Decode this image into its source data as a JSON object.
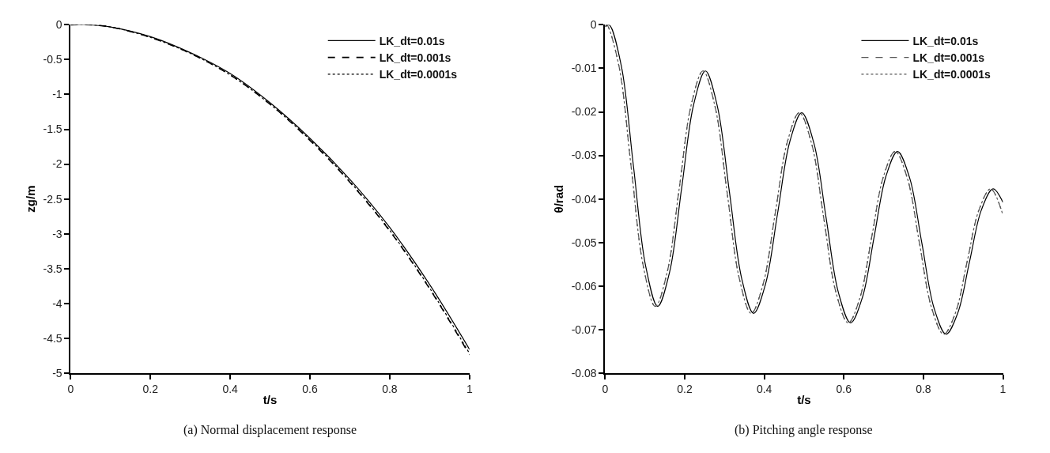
{
  "chart_data": [
    {
      "type": "line",
      "xlabel": "t/s",
      "ylabel": "zg/m",
      "xlim": [
        0,
        1
      ],
      "ylim": [
        -5,
        0
      ],
      "xticks": [
        0,
        0.2,
        0.4,
        0.6,
        0.8,
        1
      ],
      "yticks": [
        0,
        -0.5,
        -1,
        -1.5,
        -2,
        -2.5,
        -3,
        -3.5,
        -4,
        -4.5,
        -5
      ],
      "legend": "top right",
      "marker": "none",
      "x": [
        0,
        0.05,
        0.1,
        0.2,
        0.3,
        0.4,
        0.5,
        0.6,
        0.7,
        0.8,
        0.9,
        1.0
      ],
      "series": [
        {
          "name": "LK_dt=0.01s",
          "color": "#000000",
          "line_style": "solid",
          "values": [
            0,
            0,
            -0.03,
            -0.17,
            -0.4,
            -0.7,
            -1.12,
            -1.63,
            -2.22,
            -2.91,
            -3.73,
            -4.66
          ]
        },
        {
          "name": "LK_dt=0.001s",
          "color": "#000000",
          "line_style": "dashed",
          "values": [
            0,
            0,
            -0.03,
            -0.18,
            -0.41,
            -0.72,
            -1.14,
            -1.66,
            -2.26,
            -2.96,
            -3.79,
            -4.74
          ]
        },
        {
          "name": "LK_dt=0.0001s",
          "color": "#000000",
          "line_style": "dotted",
          "values": [
            0,
            0,
            -0.03,
            -0.18,
            -0.41,
            -0.72,
            -1.14,
            -1.65,
            -2.25,
            -2.95,
            -3.78,
            -4.72
          ]
        }
      ],
      "annotations": [
        "(a) Normal displacement response"
      ]
    },
    {
      "type": "line",
      "xlabel": "t/s",
      "ylabel": "θ/rad",
      "xlim": [
        0,
        1
      ],
      "ylim": [
        -0.08,
        0
      ],
      "xticks": [
        0,
        0.2,
        0.4,
        0.6,
        0.8,
        1
      ],
      "yticks": [
        0,
        -0.01,
        -0.02,
        -0.03,
        -0.04,
        -0.05,
        -0.06,
        -0.07,
        -0.08
      ],
      "legend": "top right",
      "marker": "none",
      "series": [
        {
          "name": "LK_dt=0.01s",
          "color": "#000000",
          "line_style": "solid",
          "x": [
            0,
            0.01,
            0.0405,
            0.071,
            0.1015,
            0.132,
            0.162,
            0.192,
            0.222,
            0.252,
            0.282,
            0.3125,
            0.343,
            0.373,
            0.403,
            0.4335,
            0.464,
            0.494,
            0.525,
            0.5555,
            0.586,
            0.617,
            0.6465,
            0.676,
            0.7055,
            0.735,
            0.7655,
            0.796,
            0.8265,
            0.857,
            0.8865,
            0.916,
            0.9455,
            0.975,
            1.0
          ],
          "values": [
            -0.0005,
            0,
            -0.0094,
            -0.0324,
            -0.0553,
            -0.0647,
            -0.0568,
            -0.0377,
            -0.0185,
            -0.0106,
            -0.0187,
            -0.0385,
            -0.0582,
            -0.0663,
            -0.0596,
            -0.0433,
            -0.0269,
            -0.0202,
            -0.0273,
            -0.0444,
            -0.0614,
            -0.0685,
            -0.0627,
            -0.0488,
            -0.0349,
            -0.0291,
            -0.0352,
            -0.0501,
            -0.065,
            -0.0711,
            -0.0662,
            -0.0544,
            -0.0426,
            -0.0377,
            -0.0408
          ]
        },
        {
          "name": "LK_dt=0.001s",
          "color": "#555555",
          "line_style": "dashed",
          "x": [
            0,
            0.004,
            0.0345,
            0.065,
            0.0955,
            0.126,
            0.156,
            0.186,
            0.216,
            0.246,
            0.276,
            0.3065,
            0.337,
            0.367,
            0.397,
            0.4275,
            0.458,
            0.488,
            0.519,
            0.5495,
            0.58,
            0.611,
            0.6405,
            0.67,
            0.6995,
            0.729,
            0.7595,
            0.79,
            0.8205,
            0.851,
            0.8805,
            0.91,
            0.9395,
            0.969,
            1.0
          ],
          "values": [
            -0.0002,
            0,
            -0.0094,
            -0.0324,
            -0.0553,
            -0.0647,
            -0.0568,
            -0.0377,
            -0.0185,
            -0.0106,
            -0.0187,
            -0.0385,
            -0.0582,
            -0.0663,
            -0.0596,
            -0.0433,
            -0.0269,
            -0.0202,
            -0.0273,
            -0.0444,
            -0.0614,
            -0.0685,
            -0.0627,
            -0.0488,
            -0.0349,
            -0.0291,
            -0.0352,
            -0.0501,
            -0.065,
            -0.0711,
            -0.0662,
            -0.0544,
            -0.0426,
            -0.0377,
            -0.0437
          ]
        },
        {
          "name": "LK_dt=0.0001s",
          "color": "#555555",
          "line_style": "dotted",
          "x": [
            0,
            0.004,
            0.0345,
            0.065,
            0.0955,
            0.126,
            0.156,
            0.186,
            0.216,
            0.246,
            0.276,
            0.3065,
            0.337,
            0.367,
            0.397,
            0.4275,
            0.458,
            0.488,
            0.519,
            0.5495,
            0.58,
            0.611,
            0.6405,
            0.67,
            0.6995,
            0.729,
            0.7595,
            0.79,
            0.8205,
            0.851,
            0.8805,
            0.91,
            0.9395,
            0.969,
            1.0
          ],
          "values": [
            -0.0002,
            0,
            -0.0094,
            -0.0324,
            -0.0553,
            -0.0647,
            -0.0568,
            -0.0377,
            -0.0185,
            -0.0106,
            -0.0187,
            -0.0385,
            -0.0582,
            -0.0663,
            -0.0596,
            -0.0433,
            -0.0269,
            -0.0202,
            -0.0273,
            -0.0444,
            -0.0614,
            -0.0685,
            -0.0627,
            -0.0488,
            -0.0349,
            -0.0291,
            -0.0352,
            -0.0501,
            -0.065,
            -0.0711,
            -0.0662,
            -0.0544,
            -0.0426,
            -0.0377,
            -0.0437
          ]
        }
      ],
      "annotations": [
        "(b) Pitching angle response"
      ]
    }
  ]
}
